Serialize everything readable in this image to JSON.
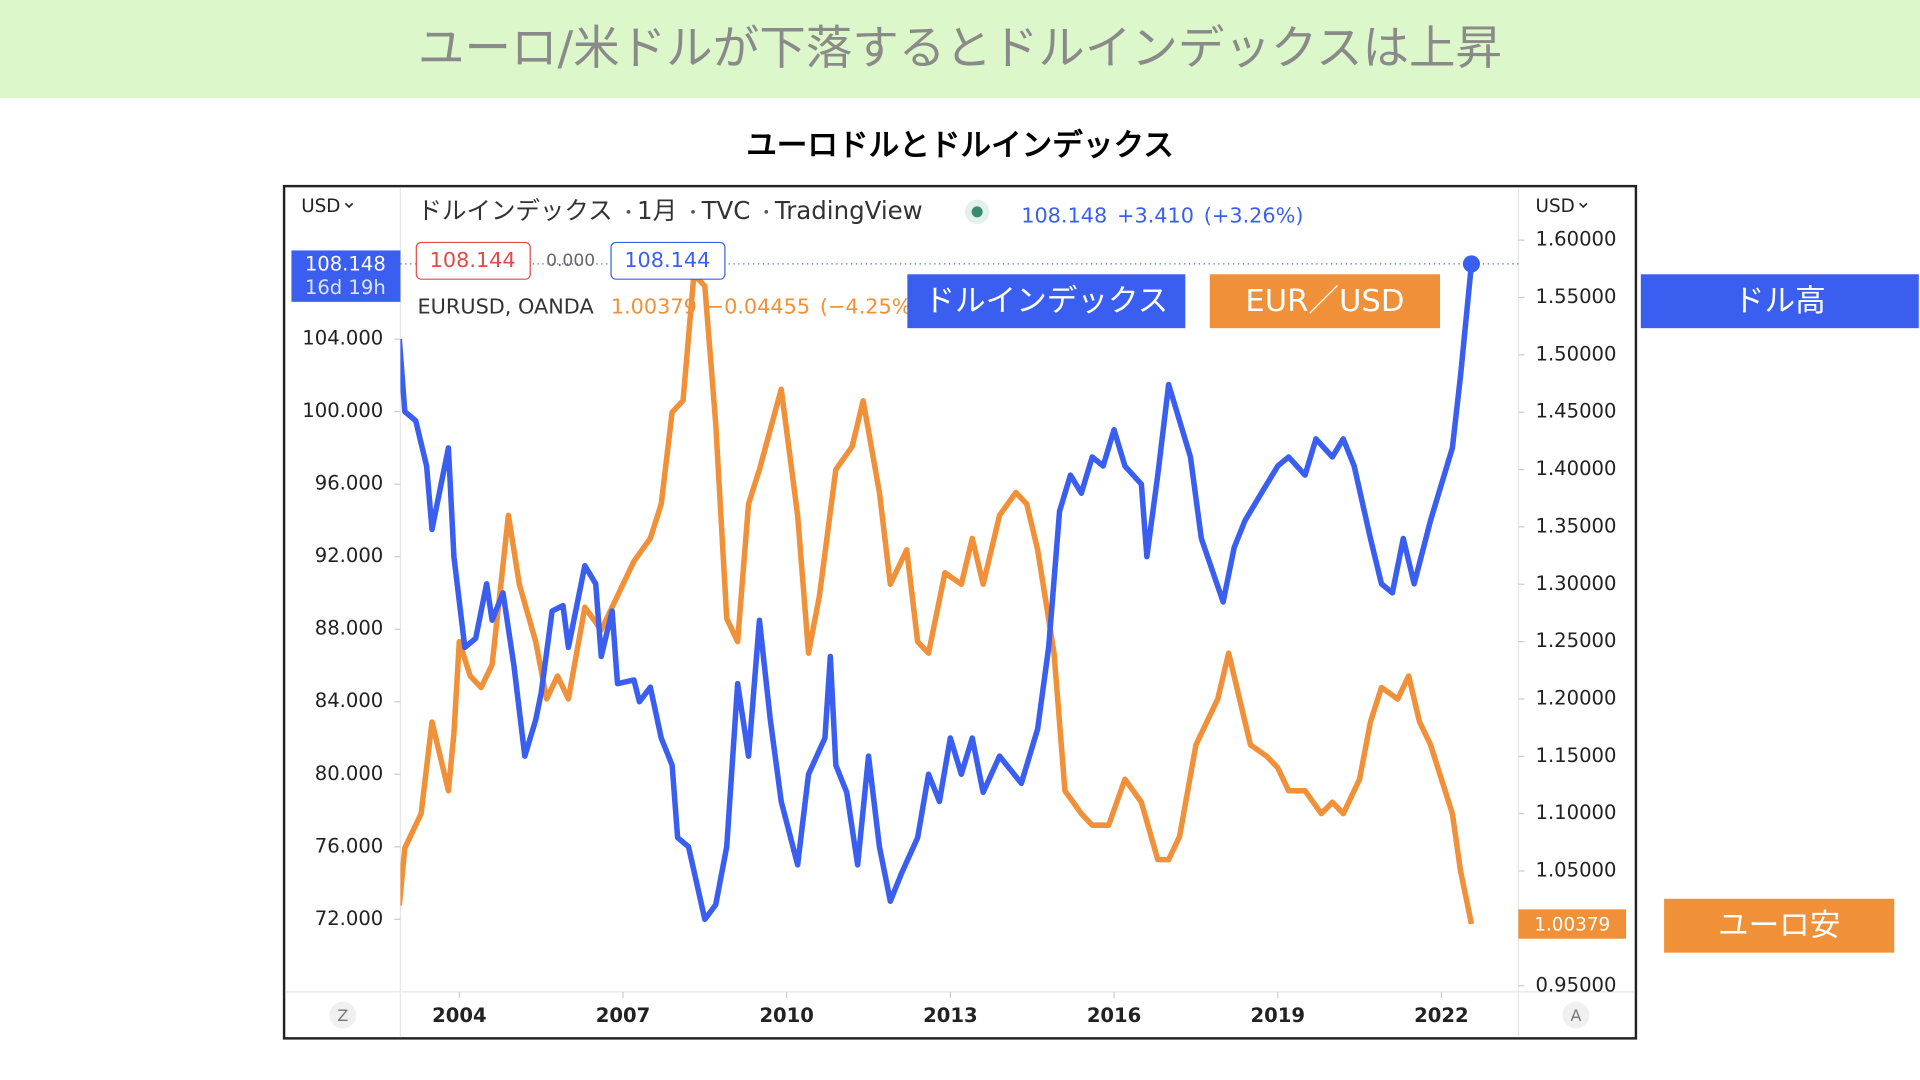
{
  "banner": "ユーロ/米ドルが下落するとドルインデックスは上昇",
  "chart_data": {
    "type": "line",
    "title": "ユーロドルとドルインデックス",
    "interval": "1月",
    "source": "TVC",
    "platform": "TradingView",
    "y_unit": "USD",
    "y2_unit": "USD",
    "countdown": "16d 19h",
    "order_boxes": [
      "108.144",
      "0.000",
      "108.144"
    ],
    "scale_buttons": [
      "Z",
      "A"
    ],
    "xlim": [
      2002.92,
      2023.41
    ],
    "xticks": [
      2004,
      2007,
      2010,
      2013,
      2016,
      2019,
      2022
    ],
    "ylim": [
      68.0,
      112.37
    ],
    "yticks": [
      {
        "value": 72,
        "label": "72.000"
      },
      {
        "value": 76,
        "label": "76.000"
      },
      {
        "value": 80,
        "label": "80.000"
      },
      {
        "value": 84,
        "label": "84.000"
      },
      {
        "value": 88,
        "label": "88.000"
      },
      {
        "value": 92,
        "label": "92.000"
      },
      {
        "value": 96,
        "label": "96.000"
      },
      {
        "value": 100,
        "label": "100.000"
      },
      {
        "value": 104,
        "label": "104.000"
      }
    ],
    "y2lim": [
      0.9447,
      1.646
    ],
    "y2ticks": [
      {
        "value": 0.95,
        "label": "0.95000"
      },
      {
        "value": 1.0,
        "label": "1.00000"
      },
      {
        "value": 1.05,
        "label": "1.05000"
      },
      {
        "value": 1.1,
        "label": "1.10000"
      },
      {
        "value": 1.15,
        "label": "1.15000"
      },
      {
        "value": 1.2,
        "label": "1.20000"
      },
      {
        "value": 1.25,
        "label": "1.25000"
      },
      {
        "value": 1.3,
        "label": "1.30000"
      },
      {
        "value": 1.35,
        "label": "1.35000"
      },
      {
        "value": 1.4,
        "label": "1.40000"
      },
      {
        "value": 1.45,
        "label": "1.45000"
      },
      {
        "value": 1.5,
        "label": "1.50000"
      },
      {
        "value": 1.55,
        "label": "1.55000"
      },
      {
        "value": 1.6,
        "label": "1.60000"
      }
    ],
    "series": [
      {
        "name": "ドルインデックス",
        "color": "#3a5ff0",
        "last": 108.148,
        "change": "+3.410",
        "change_pct": "(+3.26%)",
        "x": [
          2002.9,
          2003.0,
          2003.2,
          2003.4,
          2003.5,
          2003.8,
          2003.9,
          2004.1,
          2004.3,
          2004.5,
          2004.6,
          2004.8,
          2005.0,
          2005.2,
          2005.4,
          2005.5,
          2005.7,
          2005.9,
          2006.0,
          2006.3,
          2006.5,
          2006.6,
          2006.8,
          2006.9,
          2007.2,
          2007.3,
          2007.5,
          2007.7,
          2007.9,
          2008.0,
          2008.2,
          2008.5,
          2008.7,
          2008.9,
          2009.1,
          2009.3,
          2009.5,
          2009.7,
          2009.9,
          2010.2,
          2010.4,
          2010.7,
          2010.8,
          2010.9,
          2011.1,
          2011.3,
          2011.5,
          2011.7,
          2011.9,
          2012.1,
          2012.4,
          2012.6,
          2012.8,
          2013.0,
          2013.2,
          2013.4,
          2013.6,
          2013.9,
          2014.3,
          2014.6,
          2014.8,
          2015.0,
          2015.2,
          2015.4,
          2015.6,
          2015.8,
          2016.0,
          2016.2,
          2016.5,
          2016.6,
          2016.8,
          2017.0,
          2017.2,
          2017.4,
          2017.6,
          2018.0,
          2018.2,
          2018.4,
          2018.7,
          2019.0,
          2019.2,
          2019.5,
          2019.7,
          2020.0,
          2020.2,
          2020.4,
          2020.7,
          2020.9,
          2021.1,
          2021.3,
          2021.5,
          2021.8,
          2022.0,
          2022.2,
          2022.35,
          2022.55
        ],
        "values": [
          104,
          100,
          99.5,
          97,
          93.5,
          98,
          92,
          87,
          87.5,
          90.5,
          88.5,
          90,
          86,
          81,
          83,
          84.5,
          89,
          89.3,
          87,
          91.5,
          90.5,
          86.5,
          89,
          85,
          85.2,
          84,
          84.8,
          82,
          80.5,
          76.5,
          76,
          72,
          72.8,
          76,
          85,
          81,
          88.5,
          83,
          78.5,
          75,
          80,
          82,
          86.5,
          80.5,
          79,
          75,
          81,
          76,
          73,
          74.5,
          76.5,
          80,
          78.5,
          82,
          80,
          82,
          79,
          81,
          79.5,
          82.5,
          87,
          94.5,
          96.5,
          95.5,
          97.5,
          97,
          99,
          97,
          96,
          92,
          96.5,
          101.5,
          99.5,
          97.5,
          93,
          89.5,
          92.5,
          94,
          95.5,
          97,
          97.5,
          96.5,
          98.5,
          97.5,
          98.5,
          97,
          93,
          90.5,
          90,
          93,
          90.5,
          94,
          96,
          98,
          102,
          108.148
        ]
      },
      {
        "name": "EURUSD, OANDA",
        "color": "#f0913a",
        "axis": "y2",
        "last": 1.00379,
        "change": "−0.04455",
        "change_pct": "(−4.25%)",
        "x": [
          2002.9,
          2003.0,
          2003.3,
          2003.5,
          2003.8,
          2003.9,
          2004.0,
          2004.2,
          2004.4,
          2004.6,
          2004.9,
          2005.1,
          2005.4,
          2005.6,
          2005.8,
          2006.0,
          2006.3,
          2006.6,
          2006.8,
          2007.0,
          2007.2,
          2007.5,
          2007.7,
          2007.9,
          2008.1,
          2008.3,
          2008.5,
          2008.7,
          2008.9,
          2009.1,
          2009.3,
          2009.5,
          2009.9,
          2010.2,
          2010.4,
          2010.6,
          2010.9,
          2011.2,
          2011.4,
          2011.7,
          2011.9,
          2012.2,
          2012.4,
          2012.6,
          2012.9,
          2013.2,
          2013.4,
          2013.6,
          2013.9,
          2014.2,
          2014.4,
          2014.6,
          2014.9,
          2015.1,
          2015.4,
          2015.6,
          2015.9,
          2016.2,
          2016.5,
          2016.8,
          2017.0,
          2017.2,
          2017.5,
          2017.7,
          2017.9,
          2018.1,
          2018.3,
          2018.5,
          2018.8,
          2019.0,
          2019.2,
          2019.5,
          2019.8,
          2020.0,
          2020.2,
          2020.5,
          2020.7,
          2020.9,
          2021.2,
          2021.4,
          2021.6,
          2021.8,
          2022.0,
          2022.2,
          2022.35,
          2022.55
        ],
        "values": [
          1.02,
          1.07,
          1.1,
          1.18,
          1.12,
          1.17,
          1.25,
          1.22,
          1.21,
          1.23,
          1.36,
          1.3,
          1.25,
          1.2,
          1.22,
          1.2,
          1.28,
          1.26,
          1.28,
          1.3,
          1.32,
          1.34,
          1.37,
          1.45,
          1.46,
          1.57,
          1.56,
          1.44,
          1.27,
          1.25,
          1.37,
          1.4,
          1.47,
          1.36,
          1.24,
          1.29,
          1.4,
          1.42,
          1.46,
          1.38,
          1.3,
          1.33,
          1.25,
          1.24,
          1.31,
          1.3,
          1.34,
          1.3,
          1.36,
          1.38,
          1.37,
          1.33,
          1.24,
          1.12,
          1.1,
          1.09,
          1.09,
          1.13,
          1.11,
          1.06,
          1.06,
          1.08,
          1.16,
          1.18,
          1.2,
          1.24,
          1.2,
          1.16,
          1.15,
          1.14,
          1.12,
          1.12,
          1.1,
          1.11,
          1.1,
          1.13,
          1.18,
          1.21,
          1.2,
          1.22,
          1.18,
          1.16,
          1.13,
          1.1,
          1.05,
          1.00379
        ]
      }
    ],
    "annotations": [
      "ドルインデックス",
      "EUR／USD",
      "ドル高",
      "ユーロ安"
    ]
  }
}
